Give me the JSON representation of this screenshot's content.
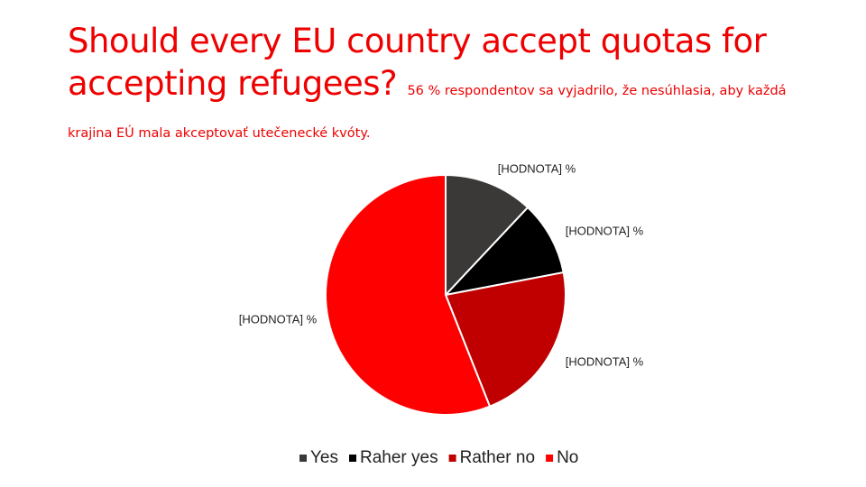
{
  "chart_data": {
    "type": "pie",
    "title": "Should every EU country accept quotas for accepting refugees?",
    "subtitle": "56 % respondentov sa vyjadrilo, že nesúhlasia, aby každá krajina EÚ mala akceptovať utečenecké kvóty.",
    "categories": [
      "Yes",
      "Raher yes",
      "Rather no",
      "No"
    ],
    "values": [
      12,
      10,
      22,
      56
    ],
    "value_labels": [
      "[HODNOTA] %",
      "[HODNOTA] %",
      "[HODNOTA] %",
      "[HODNOTA] %"
    ],
    "colors": [
      "#3a3938",
      "#000000",
      "#c00000",
      "#ff0000"
    ],
    "legend": "bottom"
  }
}
